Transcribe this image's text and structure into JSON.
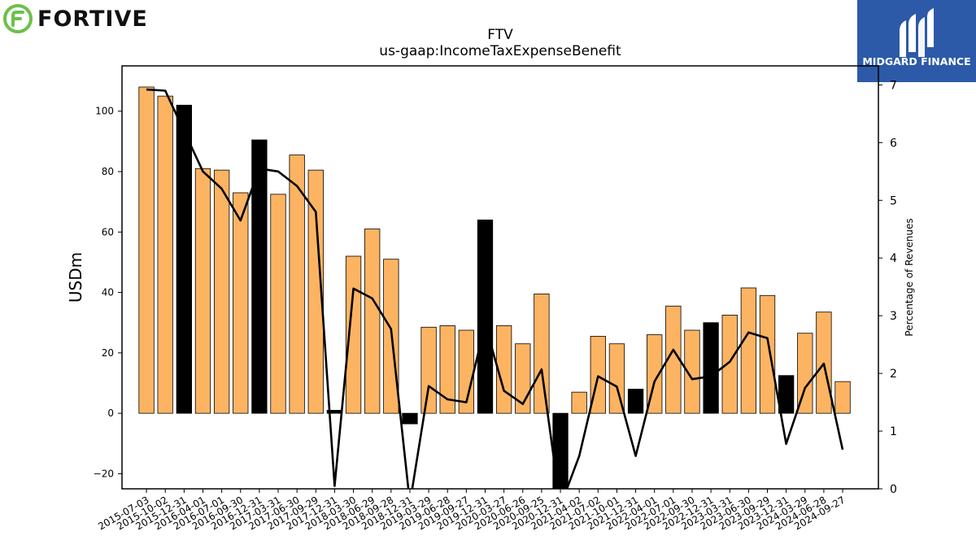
{
  "branding": {
    "company_logo_text": "FORTIVE",
    "company_logo_color": "#6cc04a",
    "finance_logo_text": "MIDGARD FINANCE",
    "finance_logo_color": "#2c5aa8"
  },
  "chart_data": {
    "type": "bar",
    "title": "FTV",
    "subtitle": "us-gaap:IncomeTaxExpenseBenefit",
    "ylabel": "USDm",
    "y2label": "Percentage of Revenues",
    "ylim": [
      -25,
      115
    ],
    "y2lim": [
      0,
      7.33
    ],
    "yticks": [
      -20,
      0,
      20,
      40,
      60,
      80,
      100
    ],
    "y2ticks": [
      0,
      1,
      2,
      3,
      4,
      5,
      6,
      7
    ],
    "categories": [
      "2015-07-03",
      "2015-10-02",
      "2015-12-31",
      "2016-04-01",
      "2016-07-01",
      "2016-09-30",
      "2016-12-31",
      "2017-03-31",
      "2017-06-30",
      "2017-09-29",
      "2017-12-31",
      "2018-03-30",
      "2018-06-29",
      "2018-09-28",
      "2018-12-31",
      "2019-03-29",
      "2019-06-28",
      "2019-09-27",
      "2019-12-31",
      "2020-03-27",
      "2020-06-26",
      "2020-09-25",
      "2020-12-31",
      "2021-04-02",
      "2021-07-02",
      "2021-10-01",
      "2021-12-31",
      "2022-04-01",
      "2022-07-01",
      "2022-09-30",
      "2022-12-31",
      "2023-03-31",
      "2023-06-30",
      "2023-09-29",
      "2023-12-31",
      "2024-03-29",
      "2024-06-28",
      "2024-09-27"
    ],
    "series": [
      {
        "kind": "bar",
        "values": [
          108,
          105,
          102,
          81,
          80.5,
          73,
          90.5,
          72.5,
          85.5,
          80.5,
          1,
          52,
          61,
          51,
          -3.5,
          28.5,
          29,
          27.5,
          64,
          29,
          23,
          39.5,
          -30,
          7,
          25.5,
          23,
          8,
          26,
          35.5,
          27.5,
          30,
          32.5,
          41.5,
          39,
          12.5,
          26.5,
          33.5,
          10.5
        ],
        "highlight": [
          false,
          false,
          true,
          false,
          false,
          false,
          true,
          false,
          false,
          false,
          true,
          false,
          false,
          false,
          true,
          false,
          false,
          false,
          true,
          false,
          false,
          false,
          true,
          false,
          false,
          false,
          true,
          false,
          false,
          false,
          true,
          false,
          false,
          false,
          true,
          false,
          false,
          false
        ],
        "color": "#fdb462",
        "highlight_color": "#000000"
      },
      {
        "kind": "line",
        "axis": "right",
        "values": [
          6.92,
          6.9,
          6.2,
          5.5,
          5.2,
          4.65,
          5.55,
          5.5,
          5.25,
          4.8,
          0.05,
          3.47,
          3.3,
          2.77,
          -0.25,
          1.78,
          1.55,
          1.5,
          2.85,
          1.7,
          1.47,
          2.07,
          -0.3,
          0.57,
          1.95,
          1.77,
          0.57,
          1.86,
          2.41,
          1.9,
          1.95,
          2.2,
          2.71,
          2.61,
          0.78,
          1.75,
          2.17,
          0.68
        ],
        "color": "#000000"
      }
    ]
  }
}
